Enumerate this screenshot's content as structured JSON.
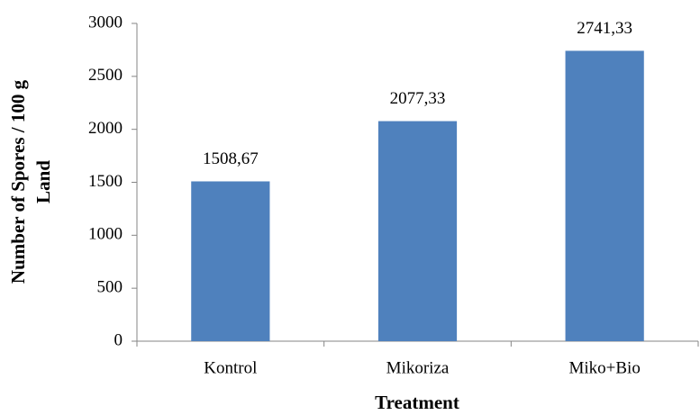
{
  "chart_data": {
    "type": "bar",
    "categories": [
      "Kontrol",
      "Mikoriza",
      "Miko+Bio"
    ],
    "values": [
      1508.67,
      2077.33,
      2741.33
    ],
    "value_labels": [
      "1508,67",
      "2077,33",
      "2741,33"
    ],
    "color": "#4f81bd",
    "xlabel": "Treatment",
    "ylabel": [
      "Number of Spores / 100 g",
      "Land"
    ],
    "ylim": [
      0,
      3000
    ],
    "yticks": [
      0,
      500,
      1000,
      1500,
      2000,
      2500,
      3000
    ],
    "grid": false
  }
}
